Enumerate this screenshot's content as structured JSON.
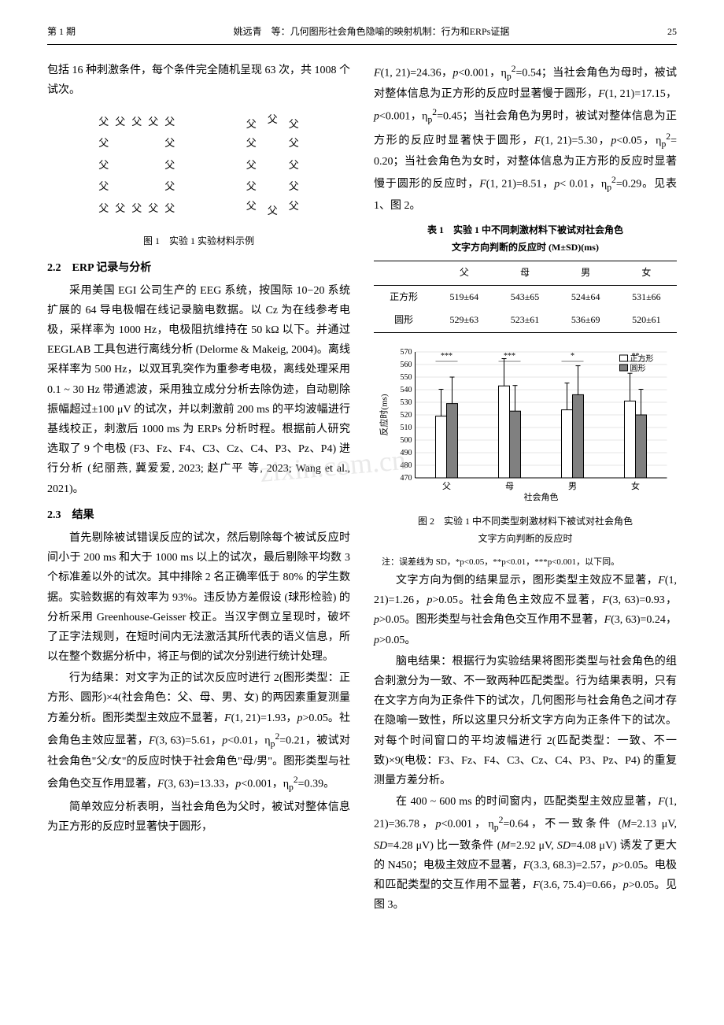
{
  "header": {
    "issue": "第 1 期",
    "title": "姚远青　等：几何图形社会角色隐喻的映射机制：行为和ERPs证据",
    "page": "25"
  },
  "left": {
    "p1": "包括 16 种刺激条件，每个条件完全随机呈现 63 次，共 1008 个试次。",
    "fig1_caption": "图 1　实验 1 实验材料示例",
    "stimuli_char": "父",
    "sec22_title": "2.2　ERP 记录与分析",
    "sec22_p1": "采用美国 EGI 公司生产的 EEG 系统，按国际 10−20 系统扩展的 64 导电极帽在线记录脑电数据。以 Cz 为在线参考电极，采样率为 1000 Hz，电极阻抗维持在 50 kΩ 以下。并通过 EEGLAB 工具包进行离线分析 (Delorme & Makeig, 2004)。离线采样率为 500 Hz，以双耳乳突作为重参考电极，离线处理采用 0.1 ~ 30 Hz 带通滤波，采用独立成分分析去除伪迹，自动剔除振幅超过±100 μV 的试次，并以刺激前 200 ms 的平均波幅进行基线校正，刺激后 1000 ms 为 ERPs 分析时程。根据前人研究选取了 9 个电极 (F3、Fz、F4、C3、Cz、C4、P3、Pz、P4) 进行分析 (纪丽燕, 冀爱爱, 2023; 赵广平 等, 2023; Wang et al., 2021)。",
    "sec23_title": "2.3　结果",
    "sec23_p1": "首先剔除被试错误反应的试次，然后剔除每个被试反应时间小于 200 ms 和大于 1000 ms 以上的试次，最后剔除平均数 3 个标准差以外的试次。其中排除 2 名正确率低于 80% 的学生数据。实验数据的有效率为 93%。违反协方差假设 (球形检验) 的分析采用 Greenhouse-Geisser 校正。当汉字倒立呈现时，破坏了正字法规则，在短时间内无法激活其所代表的语义信息，所以在整个数据分析中，将正与倒的试次分别进行统计处理。",
    "sec23_p2_a": "行为结果：对文字为正的试次反应时进行 2(图形类型：正方形、圆形)×4(社会角色：父、母、男、女) 的两因素重复测量方差分析。图形类型主效应不显著，",
    "sec23_p2_b": "(1, 21)=1.93，",
    "sec23_p2_c": ">0.05。社会角色主效应显著，",
    "sec23_p2_d": "(3, 63)=5.61，",
    "sec23_p2_e": "<0.01，η",
    "sec23_p2_f": "=0.21，被试对社会角色\"父/女\"的反应时快于社会角色\"母/男\"。图形类型与社会角色交互作用显著，",
    "sec23_p2_g": "(3, 63)=13.33，",
    "sec23_p2_h": "<0.001，η",
    "sec23_p2_i": "=0.39。",
    "sec23_p3": "简单效应分析表明，当社会角色为父时，被试对整体信息为正方形的反应时显著快于圆形，"
  },
  "right": {
    "p1_a": "(1, 21)=24.36，",
    "p1_b": "<0.001，η",
    "p1_c": "=0.54；当社会角色为母时，被试对整体信息为正方形的反应时显著慢于圆形，",
    "p1_d": "(1, 21)=17.15，",
    "p1_e": "<0.001，η",
    "p1_f": "=0.45；当社会角色为男时，被试对整体信息为正方形的反应时显著快于圆形，",
    "p1_g": "(1, 21)=5.30，",
    "p1_h": "<0.05，η",
    "p1_i": "= 0.20；当社会角色为女时，对整体信息为正方形的反应时显著慢于圆形的反应时，",
    "p1_j": "(1, 21)=8.51，",
    "p1_k": "< 0.01，η",
    "p1_l": "=0.29。见表 1、图 2。",
    "table1_title1": "表 1　实验 1 中不同刺激材料下被试对社会角色",
    "table1_title2": "文字方向判断的反应时 (M±SD)(ms)",
    "table1": {
      "cols": [
        "",
        "父",
        "母",
        "男",
        "女"
      ],
      "rows": [
        [
          "正方形",
          "519±64",
          "543±65",
          "524±64",
          "531±66"
        ],
        [
          "圆形",
          "529±63",
          "523±61",
          "536±69",
          "520±61"
        ]
      ]
    },
    "chart": {
      "type": "bar",
      "categories": [
        "父",
        "母",
        "男",
        "女"
      ],
      "series": [
        {
          "name": "正方形",
          "color": "#ffffff",
          "stroke": "#000000",
          "values": [
            519,
            543,
            524,
            531
          ],
          "sd": [
            64,
            65,
            64,
            66
          ]
        },
        {
          "name": "圆形",
          "color": "#808080",
          "stroke": "#000000",
          "values": [
            529,
            523,
            536,
            520
          ],
          "sd": [
            63,
            61,
            69,
            61
          ]
        }
      ],
      "ylim": [
        470,
        570
      ],
      "ytick_step": 10,
      "ylabel": "反应时(ms)",
      "xlabel": "社会角色",
      "legend_items": [
        "正方形",
        "圆形"
      ],
      "sig": [
        "***",
        "***",
        "*",
        "**"
      ],
      "background_color": "#ffffff",
      "grid_color": "#cccccc",
      "error_bar_color": "#000000",
      "bar_width": 0.35,
      "font_size": 10
    },
    "fig2_caption1": "图 2　实验 1 中不同类型刺激材料下被试对社会角色",
    "fig2_caption2": "文字方向判断的反应时",
    "fig2_note": "注：误差线为 SD，*p<0.05，**p<0.01，***p<0.001，以下同。",
    "p2_a": "文字方向为倒的结果显示，图形类型主效应不显著，",
    "p2_b": "(1, 21)=1.26，",
    "p2_c": ">0.05。社会角色主效应不显著，",
    "p2_d": "(3, 63)=0.93，",
    "p2_e": ">0.05。图形类型与社会角色交互作用不显著，",
    "p2_f": "(3, 63)=0.24，",
    "p2_g": ">0.05。",
    "p3": "脑电结果：根据行为实验结果将图形类型与社会角色的组合刺激分为一致、不一致两种匹配类型。行为结果表明，只有在文字方向为正条件下的试次，几何图形与社会角色之间才存在隐喻一致性，所以这里只分析文字方向为正条件下的试次。对每个时间窗口的平均波幅进行 2(匹配类型：一致、不一致)×9(电极：F3、Fz、F4、C3、Cz、C4、P3、Pz、P4) 的重复测量方差分析。",
    "p4_a": "在 400 ~ 600 ms 的时间窗内，匹配类型主效应显著，",
    "p4_b": "(1, 21)=36.78，",
    "p4_c": "<0.001，η",
    "p4_d": "=0.64，不一致条件 (",
    "p4_e": "=2.13 μV, ",
    "p4_f": "=4.28 μV) 比一致条件 (",
    "p4_g": "=2.92 μV, ",
    "p4_h": "=4.08 μV) 诱发了更大的 N450；电极主效应不显著，",
    "p4_i": "(3.3, 68.3)=2.57，",
    "p4_j": ">0.05。电极和匹配类型的交互作用不显著，",
    "p4_k": "(3.6, 75.4)=0.66，",
    "p4_l": ">0.05。见图 3。"
  },
  "watermark": "zixin.com.cn"
}
